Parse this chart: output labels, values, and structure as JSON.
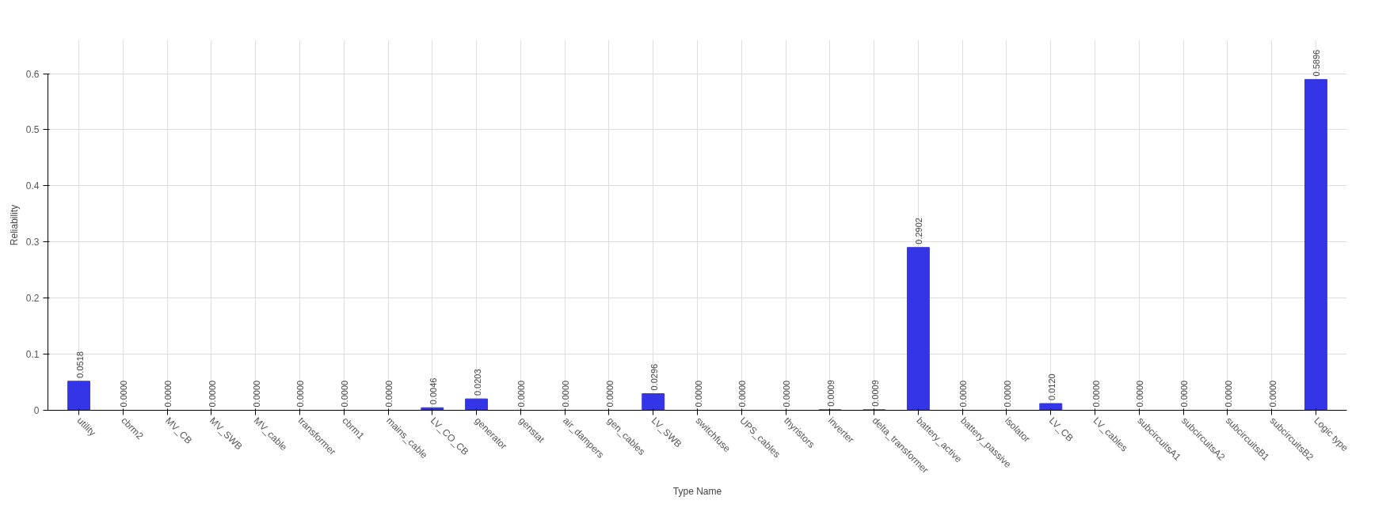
{
  "chart_data": {
    "type": "bar",
    "xlabel": "Type Name",
    "ylabel": "Reliability",
    "categories": [
      "utility",
      "cbrm2",
      "MV_CB",
      "MV_SWB",
      "MV_cable",
      "transformer",
      "cbrm1",
      "mains_cable",
      "LV_CO_CB",
      "generator",
      "genstat",
      "air_dampers",
      "gen_cables",
      "LV_SWB",
      "switchfuse",
      "UPS_cables",
      "thyristors",
      "inverter",
      "delta_transformer",
      "battery_active",
      "battery_passive",
      "isolator",
      "LV_CB",
      "LV_cables",
      "subcircuitsA1",
      "subcircuitsA2",
      "subcircuitsB1",
      "subcircuitsB2",
      "Logic type"
    ],
    "values": [
      0.0518,
      0,
      0,
      0,
      0,
      0,
      0,
      0,
      0.0046,
      0.0203,
      0,
      0,
      0,
      0.0296,
      0,
      0,
      0,
      0.0009,
      0.0009,
      0.2902,
      0,
      0,
      0.012,
      0,
      0,
      0,
      0,
      0,
      0.5896
    ],
    "value_labels": [
      "0.0518",
      "0.0000",
      "0.0000",
      "0.0000",
      "0.0000",
      "0.0000",
      "0.0000",
      "0.0000",
      "0.0046",
      "0.0203",
      "0.0000",
      "0.0000",
      "0.0000",
      "0.0296",
      "0.0000",
      "0.0000",
      "0.0000",
      "0.0009",
      "0.0009",
      "0.2902",
      "0.0000",
      "0.0000",
      "0.0120",
      "0.0000",
      "0.0000",
      "0.0000",
      "0.0000",
      "0.0000",
      "0.5896"
    ],
    "color": "#3535e8",
    "ylim": [
      0,
      0.6
    ],
    "yticks": [
      0,
      0.1,
      0.2,
      0.3,
      0.4,
      0.5,
      0.6
    ],
    "grid": true
  }
}
